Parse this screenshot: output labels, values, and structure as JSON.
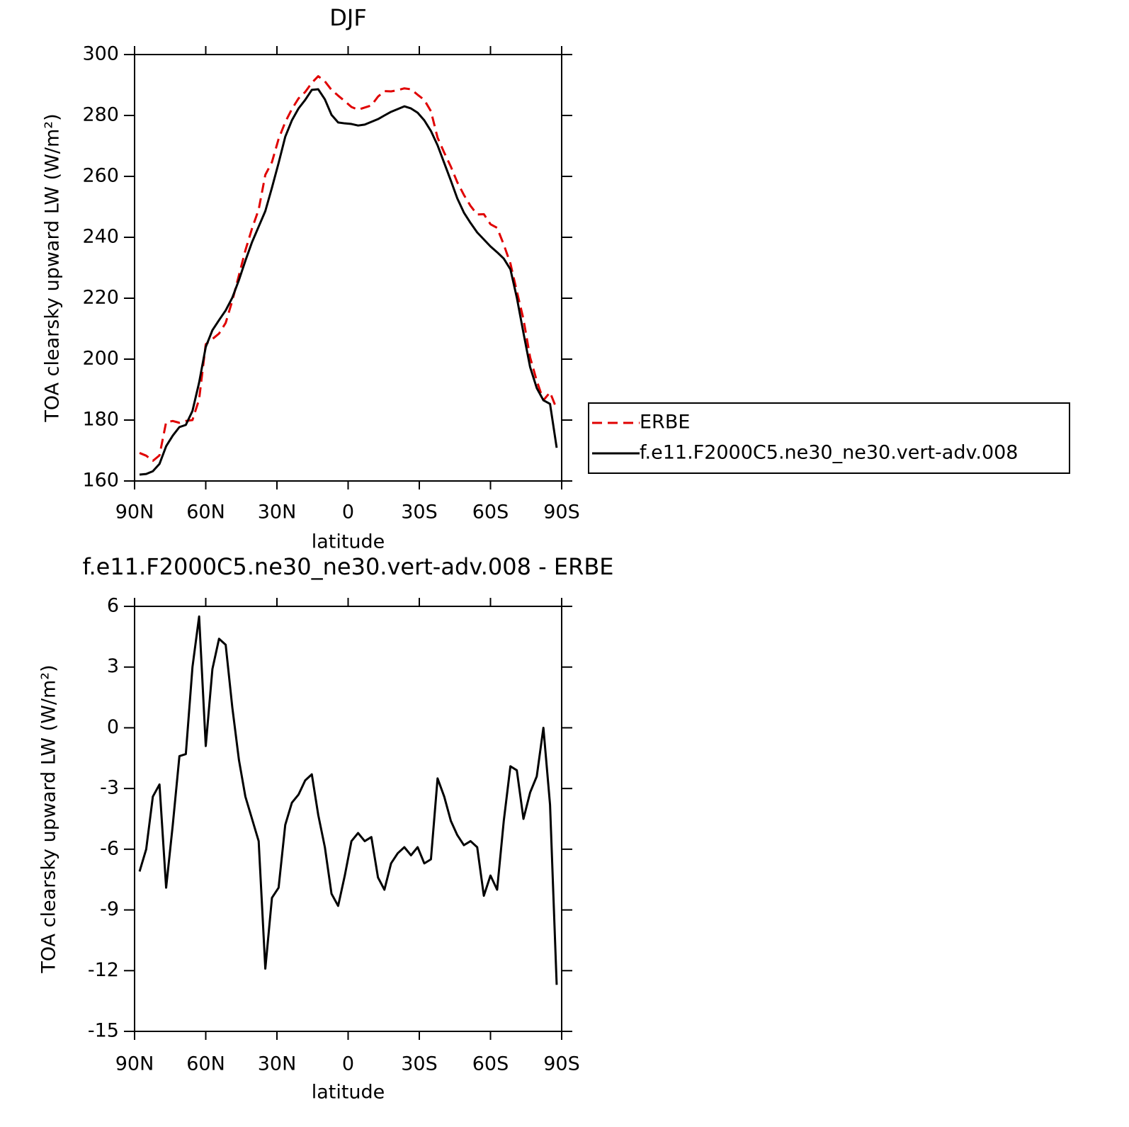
{
  "chart_data": [
    {
      "type": "line",
      "title": "DJF",
      "xlabel": "latitude",
      "ylabel": "TOA clearsky upward LW (W/m²)",
      "x": [
        87.9,
        85.1,
        82.3,
        79.5,
        76.7,
        73.9,
        71.1,
        68.4,
        65.6,
        62.8,
        60.0,
        57.2,
        54.4,
        51.6,
        48.8,
        46.0,
        43.3,
        40.5,
        37.7,
        34.9,
        32.1,
        29.3,
        26.5,
        23.7,
        20.9,
        18.1,
        15.3,
        12.6,
        9.8,
        7.0,
        4.2,
        1.4,
        -1.4,
        -4.2,
        -7.0,
        -9.8,
        -12.6,
        -15.3,
        -18.1,
        -20.9,
        -23.7,
        -26.5,
        -29.3,
        -32.1,
        -34.9,
        -37.7,
        -40.5,
        -43.3,
        -46.0,
        -48.8,
        -51.6,
        -54.4,
        -57.2,
        -60.0,
        -62.8,
        -65.6,
        -68.4,
        -71.1,
        -73.9,
        -76.7,
        -79.5,
        -82.3,
        -85.1,
        -87.9
      ],
      "series": [
        {
          "name": "ERBE",
          "color": "#e00000",
          "linestyle": "dashed",
          "values": [
            169.2,
            168.3,
            166.6,
            168.4,
            179.3,
            179.7,
            179.1,
            179.7,
            180,
            186.8,
            204.9,
            206.6,
            208.4,
            211.9,
            219.2,
            227.6,
            235.7,
            242.9,
            249.1,
            260.5,
            264.7,
            272.3,
            277.8,
            282.1,
            285.6,
            287.7,
            290.7,
            292.9,
            291.2,
            288.4,
            286.5,
            284.7,
            282.8,
            281.9,
            282.6,
            283.3,
            286.2,
            288,
            287.9,
            288.3,
            288.9,
            288.6,
            286.8,
            285.1,
            281.4,
            272.7,
            267.8,
            263.2,
            258.1,
            253.9,
            250.3,
            247.5,
            247.6,
            244.3,
            243.1,
            237.6,
            231.4,
            222.3,
            213.1,
            200.6,
            192.9,
            186.5,
            189.1,
            183.6
          ]
        },
        {
          "name": "f.e11.F2000C5.ne30_ne30.vert-adv.008",
          "color": "#000000",
          "linestyle": "solid",
          "values": [
            162.1,
            162.3,
            163.2,
            165.6,
            171.4,
            174.9,
            177.7,
            178.4,
            183,
            192.3,
            204,
            209.5,
            212.8,
            216,
            220.2,
            226,
            232.3,
            238.4,
            243.5,
            248.6,
            256.3,
            264.4,
            273,
            278.4,
            282.3,
            285.1,
            288.4,
            288.6,
            285.3,
            280.2,
            277.7,
            277.4,
            277.2,
            276.7,
            277,
            277.9,
            278.8,
            280,
            281.2,
            282.1,
            283,
            282.3,
            280.9,
            278.4,
            274.9,
            270.2,
            264.4,
            258.6,
            252.8,
            248.1,
            244.7,
            241.6,
            239.3,
            237,
            235.1,
            233,
            229.5,
            220.2,
            208.6,
            197.4,
            190.5,
            186.5,
            185.3,
            170.9
          ]
        }
      ],
      "xlim": [
        90,
        -90
      ],
      "xticks": [
        {
          "value": 90,
          "label": "90N"
        },
        {
          "value": 60,
          "label": "60N"
        },
        {
          "value": 30,
          "label": "30N"
        },
        0,
        {
          "value": -30,
          "label": "30S"
        },
        {
          "value": -60,
          "label": "60S"
        },
        {
          "value": -90,
          "label": "90S"
        }
      ],
      "ylim": [
        160,
        300
      ],
      "yticks": [
        160,
        180,
        200,
        220,
        240,
        260,
        280,
        300
      ],
      "legend": "right"
    },
    {
      "type": "line",
      "title": "f.e11.F2000C5.ne30_ne30.vert-adv.008 - ERBE",
      "xlabel": "latitude",
      "ylabel": "TOA clearsky upward LW (W/m²)",
      "x": [
        87.9,
        85.1,
        82.3,
        79.5,
        76.7,
        73.9,
        71.1,
        68.4,
        65.6,
        62.8,
        60.0,
        57.2,
        54.4,
        51.6,
        48.8,
        46.0,
        43.3,
        40.5,
        37.7,
        34.9,
        32.1,
        29.3,
        26.5,
        23.7,
        20.9,
        18.1,
        15.3,
        12.6,
        9.8,
        7.0,
        4.2,
        1.4,
        -1.4,
        -4.2,
        -7.0,
        -9.8,
        -12.6,
        -15.3,
        -18.1,
        -20.9,
        -23.7,
        -26.5,
        -29.3,
        -32.1,
        -34.9,
        -37.7,
        -40.5,
        -43.3,
        -46.0,
        -48.8,
        -51.6,
        -54.4,
        -57.2,
        -60.0,
        -62.8,
        -65.6,
        -68.4,
        -71.1,
        -73.9,
        -76.7,
        -79.5,
        -82.3,
        -85.1,
        -87.9
      ],
      "values": [
        -7.1,
        -6.0,
        -3.4,
        -2.8,
        -7.9,
        -4.8,
        -1.4,
        -1.3,
        3.0,
        5.5,
        -0.9,
        2.9,
        4.4,
        4.1,
        1.0,
        -1.6,
        -3.4,
        -4.5,
        -5.6,
        -11.9,
        -8.4,
        -7.9,
        -4.8,
        -3.7,
        -3.3,
        -2.6,
        -2.3,
        -4.3,
        -5.9,
        -8.2,
        -8.8,
        -7.3,
        -5.6,
        -5.2,
        -5.6,
        -5.4,
        -7.4,
        -8.0,
        -6.7,
        -6.2,
        -5.9,
        -6.3,
        -5.9,
        -6.7,
        -6.5,
        -2.5,
        -3.4,
        -4.6,
        -5.3,
        -5.8,
        -5.6,
        -5.9,
        -8.3,
        -7.3,
        -8.0,
        -4.6,
        -1.9,
        -2.1,
        -4.5,
        -3.2,
        -2.4,
        0.0,
        -3.8,
        -12.7
      ],
      "color": "#000000",
      "xlim": [
        90,
        -90
      ],
      "xticks": [
        {
          "value": 90,
          "label": "90N"
        },
        {
          "value": 60,
          "label": "60N"
        },
        {
          "value": 30,
          "label": "30N"
        },
        0,
        {
          "value": -30,
          "label": "30S"
        },
        {
          "value": -60,
          "label": "60S"
        },
        {
          "value": -90,
          "label": "90S"
        }
      ],
      "ylim": [
        -15,
        6
      ],
      "yticks": [
        -15,
        -12,
        -9,
        -6,
        -3,
        0,
        3,
        6
      ]
    }
  ]
}
